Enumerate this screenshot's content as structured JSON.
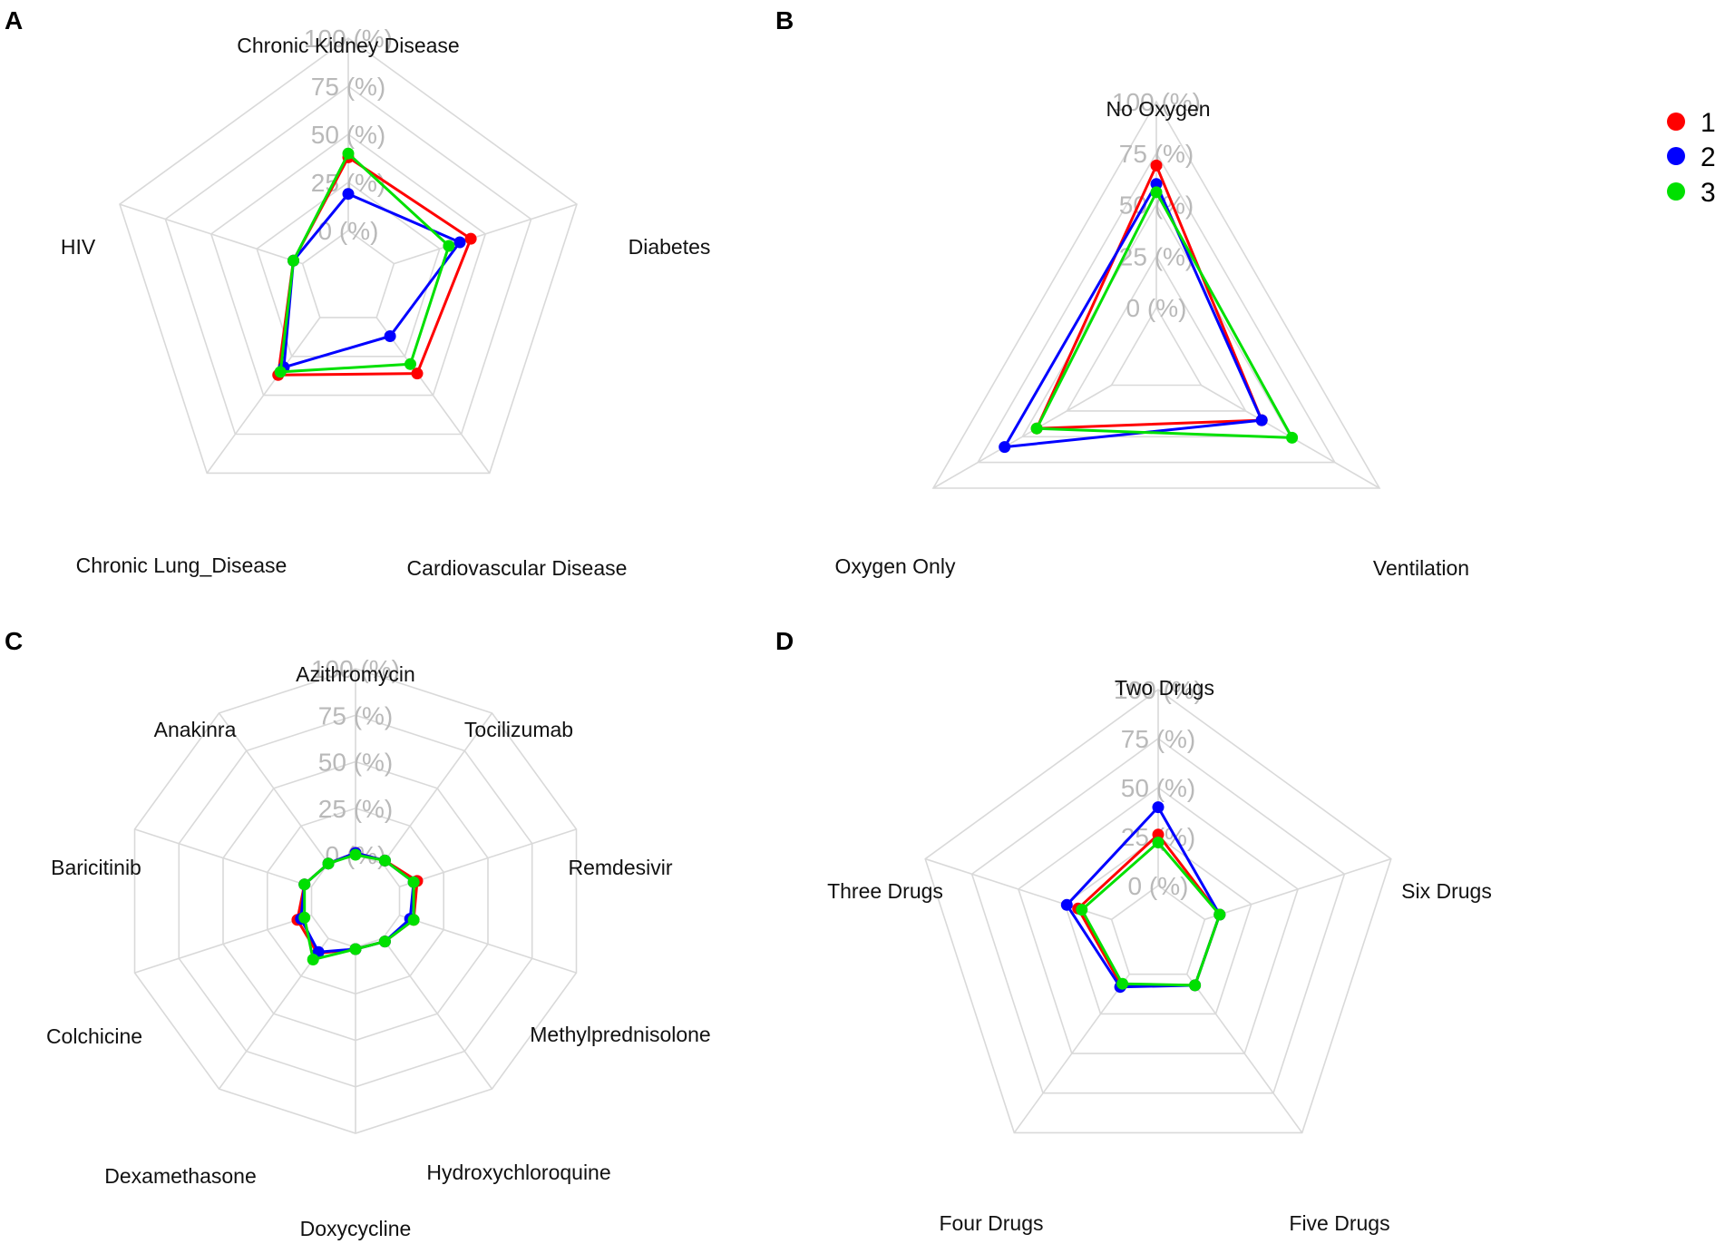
{
  "legend": [
    {
      "label": "1",
      "color": "#ff0000"
    },
    {
      "label": "2",
      "color": "#0000ff"
    },
    {
      "label": "3",
      "color": "#00e000"
    }
  ],
  "chart_data": [
    {
      "panel": "A",
      "type": "radar",
      "axes": [
        "Chronic Kidney Disease",
        "Diabetes",
        "Cardiovascular Disease",
        "Chronic Lung_Disease",
        "HIV"
      ],
      "tick_labels": [
        "0 (%)",
        "25 (%)",
        "50 (%)",
        "75 (%)",
        "100 (%)"
      ],
      "range": [
        0,
        100
      ],
      "series": [
        {
          "name": "1",
          "values": [
            38,
            42,
            36,
            37,
            5
          ]
        },
        {
          "name": "2",
          "values": [
            19,
            36,
            12,
            32,
            5
          ]
        },
        {
          "name": "3",
          "values": [
            40,
            30,
            30,
            35,
            5
          ]
        }
      ]
    },
    {
      "panel": "B",
      "type": "radar",
      "axes": [
        "No Oxygen",
        "Ventilation",
        "Oxygen Only"
      ],
      "tick_labels": [
        "0 (%)",
        "25 (%)",
        "50 (%)",
        "75 (%)",
        "100 (%)"
      ],
      "range": [
        0,
        100
      ],
      "series": [
        {
          "name": "1",
          "values": [
            69,
            34,
            42
          ]
        },
        {
          "name": "2",
          "values": [
            60,
            34,
            60
          ]
        },
        {
          "name": "3",
          "values": [
            56,
            51,
            42
          ]
        }
      ]
    },
    {
      "panel": "C",
      "type": "radar",
      "axes": [
        "Azithromycin",
        "Tocilizumab",
        "Remdesivir",
        "Methylprednisolone",
        "Hydroxychloroquine",
        "Doxycycline",
        "Dexamethasone",
        "Colchicine",
        "Baricitinib",
        "Anakinra"
      ],
      "tick_labels": [
        "0 (%)",
        "25 (%)",
        "50 (%)",
        "75 (%)",
        "100 (%)"
      ],
      "range": [
        0,
        100
      ],
      "series": [
        {
          "name": "1",
          "values": [
            1,
            2,
            10,
            8,
            2,
            1,
            10,
            8,
            4,
            0
          ]
        },
        {
          "name": "2",
          "values": [
            1,
            2,
            8,
            6,
            2,
            1,
            9,
            6,
            4,
            0
          ]
        },
        {
          "name": "3",
          "values": [
            0,
            2,
            8,
            8,
            2,
            1,
            14,
            4,
            4,
            0
          ]
        }
      ]
    },
    {
      "panel": "D",
      "type": "radar",
      "axes": [
        "Two Drugs",
        "Six Drugs",
        "Five Drugs",
        "Four Drugs",
        "Three Drugs"
      ],
      "tick_labels": [
        "0 (%)",
        "25 (%)",
        "50 (%)",
        "75 (%)",
        "100 (%)"
      ],
      "range": [
        0,
        100
      ],
      "series": [
        {
          "name": "1",
          "values": [
            26,
            8,
            7,
            7,
            18
          ]
        },
        {
          "name": "2",
          "values": [
            40,
            8,
            7,
            8,
            24
          ]
        },
        {
          "name": "3",
          "values": [
            22,
            8,
            7,
            6,
            16
          ]
        }
      ]
    }
  ]
}
